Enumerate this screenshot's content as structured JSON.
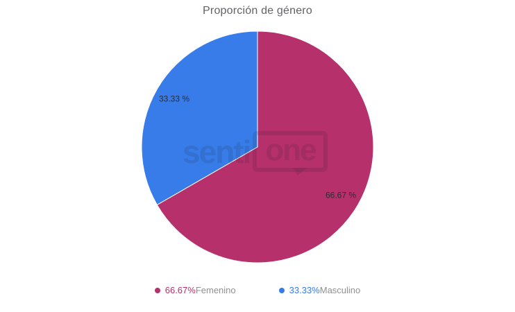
{
  "chart_data": {
    "type": "pie",
    "title": "Proporción de género",
    "slices": [
      {
        "label": "Femenino",
        "value": 66.67,
        "slice_label": "66.67 %",
        "legend_value": "66.67%",
        "color": "#b6306b"
      },
      {
        "label": "Masculino",
        "value": 33.33,
        "slice_label": "33.33 %",
        "legend_value": "33.33%",
        "color": "#377ce8"
      }
    ],
    "start_angle_deg": 0,
    "direction": "clockwise",
    "labels_inside": true,
    "label_radius_ratio": 0.83,
    "legend_position": "bottom"
  },
  "watermark": {
    "text_left": "senti",
    "text_right": "one"
  },
  "colors": {
    "background": "#ffffff",
    "title": "#606266",
    "slice_label": "#2b2e33",
    "legend_label": "#909090",
    "slice_stroke": "#ffffff"
  }
}
